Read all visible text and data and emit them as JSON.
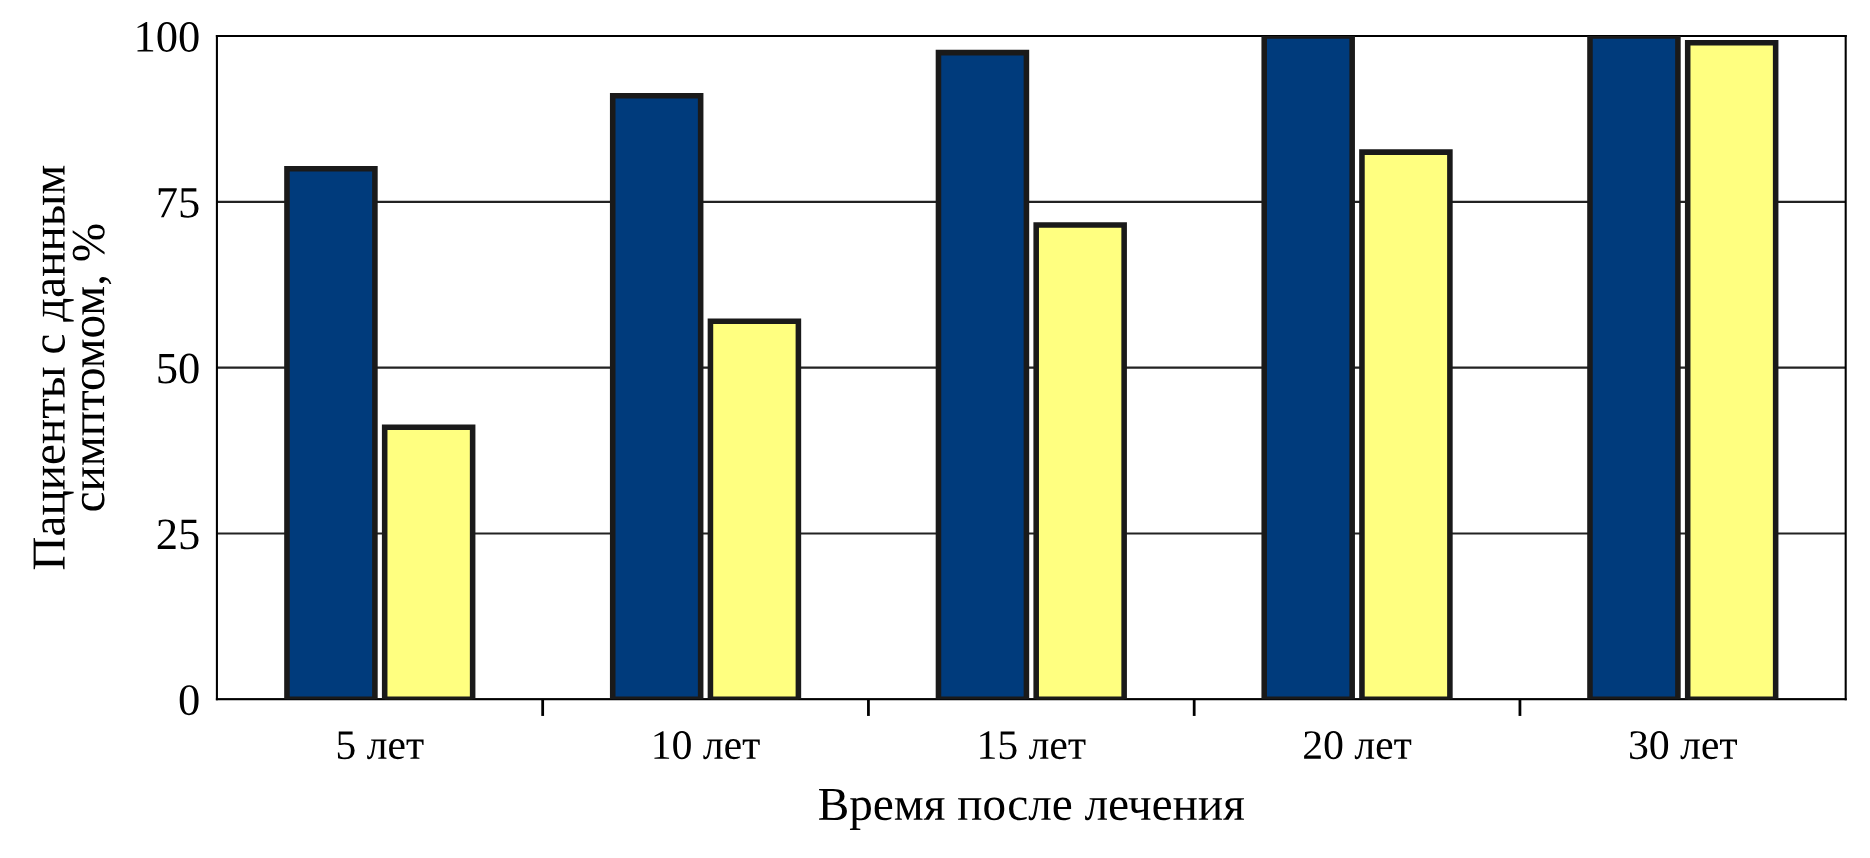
{
  "chart_data": {
    "type": "bar",
    "xlabel": "Время после лечения",
    "ylabel": "Пациенты с данным\nсимптомом, %",
    "categories": [
      "5 лет",
      "10 лет",
      "15 лет",
      "20 лет",
      "30 лет"
    ],
    "series": [
      {
        "color": "#003b7c",
        "values": [
          80,
          91,
          97.5,
          100,
          100
        ]
      },
      {
        "color": "#ffff80",
        "values": [
          41,
          57,
          71.5,
          82.5,
          99
        ]
      }
    ],
    "ylim": [
      0,
      100
    ],
    "yticks": [
      0,
      25,
      50,
      75,
      100
    ],
    "grid": "y",
    "legend": false
  }
}
